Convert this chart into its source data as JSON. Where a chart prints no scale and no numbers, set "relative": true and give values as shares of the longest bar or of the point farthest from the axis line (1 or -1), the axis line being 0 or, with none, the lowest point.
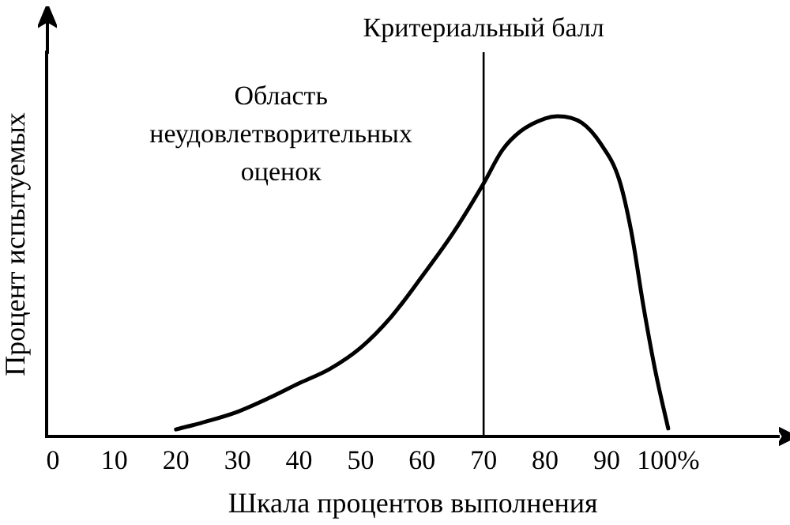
{
  "chart_data": {
    "type": "line",
    "relative": true,
    "xlabel": "Шкала процентов выполнения",
    "ylabel": "Процент испытуемых",
    "color": "#000000",
    "marker": "none",
    "line_style": "solid",
    "grid": false,
    "legend": false,
    "x": [
      20,
      25,
      30,
      35,
      40,
      45,
      50,
      55,
      60,
      65,
      70,
      73,
      76,
      80,
      82,
      86,
      89,
      92,
      94,
      96,
      98,
      100
    ],
    "values": [
      0.022,
      0.047,
      0.077,
      0.119,
      0.166,
      0.211,
      0.277,
      0.374,
      0.5,
      0.634,
      0.79,
      0.893,
      0.953,
      0.993,
      1,
      0.979,
      0.915,
      0.804,
      0.64,
      0.404,
      0.196,
      0.025
    ],
    "xlim": [
      -1,
      118
    ],
    "xticks": [
      0,
      10,
      20,
      30,
      40,
      50,
      60,
      70,
      80,
      90,
      {
        "value": 100,
        "label": "100%"
      }
    ],
    "ref_lines": [
      {
        "axis": "x",
        "value": 70,
        "label": "Критериальный балл",
        "color": "#000000"
      }
    ],
    "annotations": [
      "Область неудовлетворительных оценок"
    ]
  }
}
